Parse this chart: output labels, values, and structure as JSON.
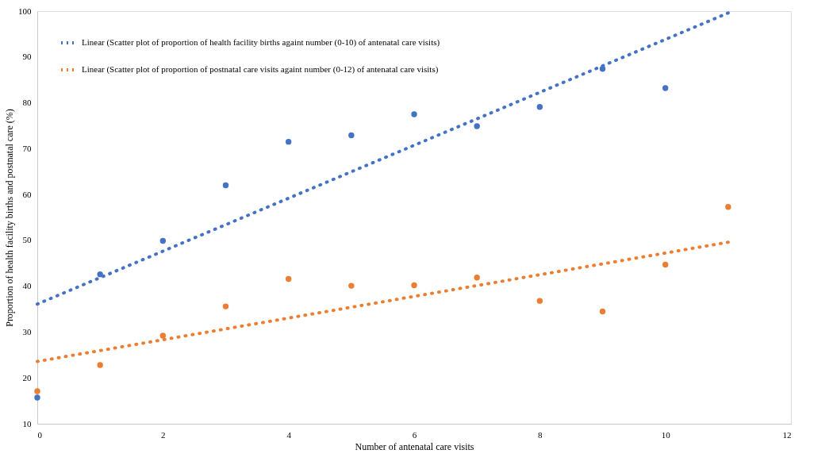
{
  "chart_data": {
    "type": "scatter",
    "xlabel": "Number of antenatal care visits",
    "ylabel": "Proportion of health facility births and postnatal care (%)",
    "xlim": [
      0,
      12
    ],
    "xticks": [
      0,
      2,
      4,
      6,
      8,
      10,
      12
    ],
    "ylim": [
      10,
      100
    ],
    "yticks": [
      10,
      20,
      30,
      40,
      50,
      60,
      70,
      80,
      90,
      100
    ],
    "grid": false,
    "legend": "top left",
    "marker": "circle",
    "series": [
      {
        "color": "#4472c4",
        "x": [
          0,
          1,
          2,
          3,
          4,
          5,
          6,
          7,
          8,
          9,
          10
        ],
        "values": [
          15.7,
          42.6,
          49.9,
          62.0,
          71.5,
          72.9,
          77.5,
          74.9,
          79.1,
          87.4,
          83.2
        ]
      },
      {
        "color": "#ed7d31",
        "x": [
          0,
          1,
          2,
          3,
          4,
          5,
          6,
          7,
          8,
          9,
          10,
          11
        ],
        "values": [
          17.1,
          22.8,
          29.2,
          35.6,
          41.6,
          40.1,
          40.2,
          41.9,
          36.8,
          34.5,
          44.7,
          57.3
        ]
      },
      {
        "type": "line",
        "line_style": "dotted",
        "marker": "none",
        "name": "Linear (Scatter plot of proportion of health facility births againt number (0-10) of antenatal care visits)",
        "color": "#4472c4",
        "x": [
          0,
          11
        ],
        "values": [
          36.1,
          99.6
        ]
      },
      {
        "type": "line",
        "line_style": "dotted",
        "marker": "none",
        "name": "Linear (Scatter plot of proportion of postnatal care visits againt number (0-12) of antenatal care visits)",
        "color": "#ed7d31",
        "x": [
          0,
          11
        ],
        "values": [
          23.6,
          49.6
        ]
      }
    ]
  }
}
